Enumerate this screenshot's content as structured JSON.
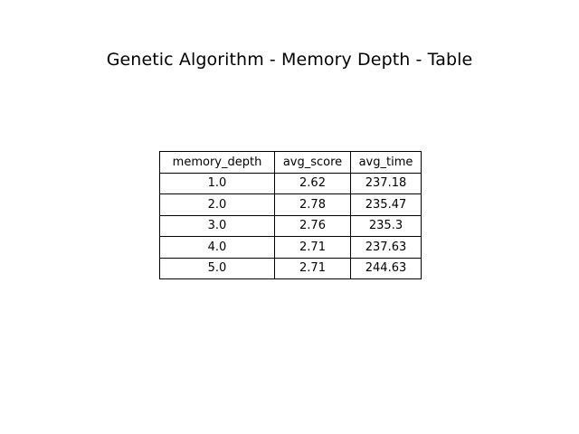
{
  "chart_data": {
    "type": "table",
    "title": "Genetic Algorithm - Memory Depth - Table",
    "columns": [
      "memory_depth",
      "avg_score",
      "avg_time"
    ],
    "rows": [
      [
        "1.0",
        "2.62",
        "237.18"
      ],
      [
        "2.0",
        "2.78",
        "235.47"
      ],
      [
        "3.0",
        "2.76",
        "235.3"
      ],
      [
        "4.0",
        "2.71",
        "237.63"
      ],
      [
        "5.0",
        "2.71",
        "244.63"
      ]
    ]
  }
}
